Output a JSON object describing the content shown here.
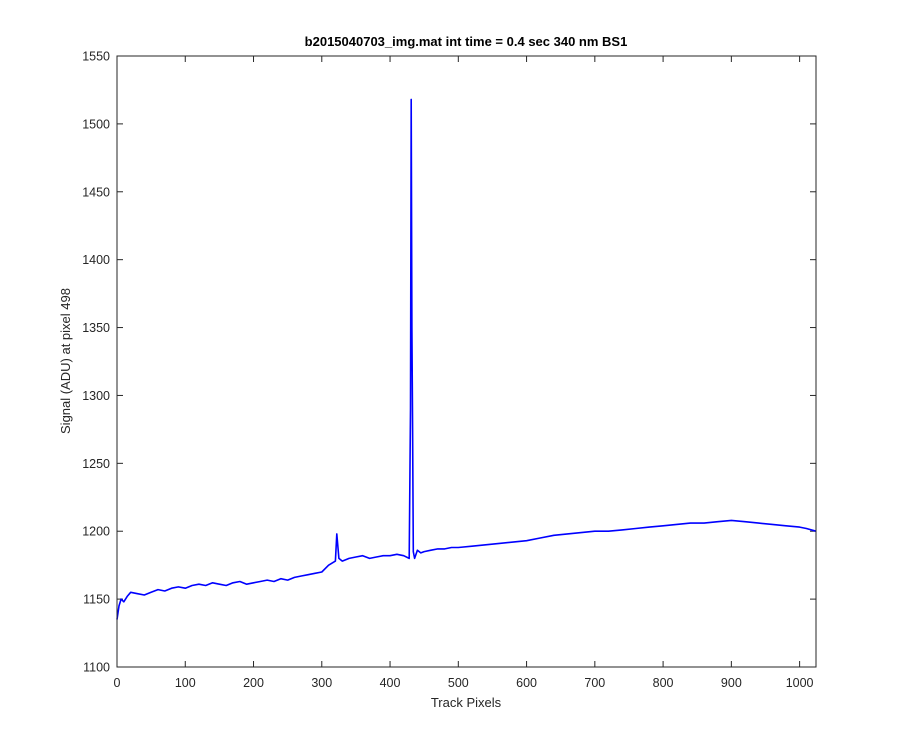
{
  "chart_data": {
    "type": "line",
    "title": "b2015040703_img.mat int time = 0.4 sec  340 nm BS1",
    "xlabel": "Track Pixels",
    "ylabel": "Signal (ADU) at pixel 498",
    "xlim": [
      0,
      1024
    ],
    "ylim": [
      1100,
      1550
    ],
    "xticks": [
      0,
      100,
      200,
      300,
      400,
      500,
      600,
      700,
      800,
      900,
      1000
    ],
    "yticks": [
      1100,
      1150,
      1200,
      1250,
      1300,
      1350,
      1400,
      1450,
      1500,
      1550
    ],
    "grid": false,
    "line_color": "#0000ff",
    "series": [
      {
        "x": [
          0,
          3,
          6,
          10,
          15,
          20,
          30,
          40,
          50,
          60,
          70,
          80,
          90,
          100,
          110,
          120,
          130,
          140,
          150,
          160,
          170,
          180,
          190,
          200,
          210,
          220,
          230,
          240,
          250,
          260,
          270,
          280,
          290,
          300,
          310,
          320,
          322,
          325,
          330,
          340,
          350,
          360,
          370,
          380,
          390,
          400,
          410,
          420,
          428,
          430,
          431,
          432,
          433,
          434,
          436,
          440,
          445,
          450,
          460,
          470,
          480,
          490,
          500,
          520,
          540,
          560,
          580,
          600,
          620,
          640,
          660,
          680,
          700,
          720,
          740,
          760,
          780,
          800,
          820,
          840,
          860,
          880,
          900,
          920,
          940,
          960,
          980,
          1000,
          1010,
          1024
        ],
        "y": [
          1135,
          1145,
          1150,
          1148,
          1152,
          1155,
          1154,
          1153,
          1155,
          1157,
          1156,
          1158,
          1159,
          1158,
          1160,
          1161,
          1160,
          1162,
          1161,
          1160,
          1162,
          1163,
          1161,
          1162,
          1163,
          1164,
          1163,
          1165,
          1164,
          1166,
          1167,
          1168,
          1169,
          1170,
          1175,
          1178,
          1198,
          1180,
          1178,
          1180,
          1181,
          1182,
          1180,
          1181,
          1182,
          1182,
          1183,
          1182,
          1180,
          1290,
          1518,
          1350,
          1275,
          1185,
          1180,
          1186,
          1184,
          1185,
          1186,
          1187,
          1187,
          1188,
          1188,
          1189,
          1190,
          1191,
          1192,
          1193,
          1195,
          1197,
          1198,
          1199,
          1200,
          1200,
          1201,
          1202,
          1203,
          1204,
          1205,
          1206,
          1206,
          1207,
          1208,
          1207,
          1206,
          1205,
          1204,
          1203,
          1202,
          1200
        ]
      }
    ]
  }
}
